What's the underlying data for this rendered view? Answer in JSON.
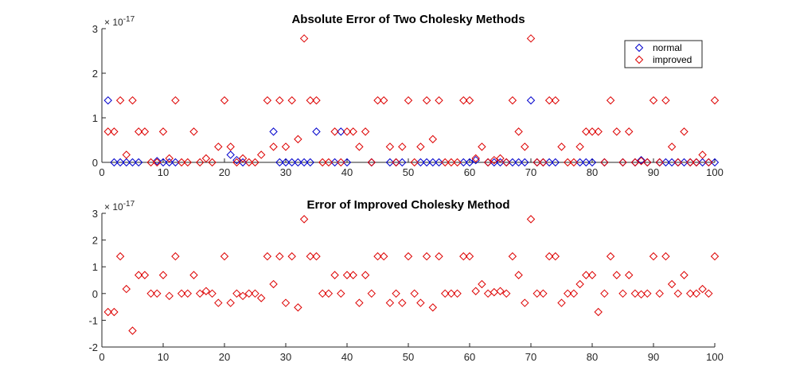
{
  "colors": {
    "normal": "#0000cc",
    "improved": "#dd0000",
    "axis": "#262626"
  },
  "chart_data": [
    {
      "type": "scatter",
      "title": "Absolute Error of Two Cholesky Methods",
      "xlabel": "",
      "ylabel": "",
      "xlim": [
        0,
        100
      ],
      "ylim": [
        0,
        3
      ],
      "xticks": [
        0,
        10,
        20,
        30,
        40,
        50,
        60,
        70,
        80,
        90,
        100
      ],
      "yticks": [
        0,
        1,
        2,
        3
      ],
      "y_exponent": "× 10",
      "y_exponent_power": "-17",
      "marker": "diamond",
      "legend": {
        "position": "top-right"
      },
      "series": [
        {
          "name": "normal",
          "color": "#0000cc",
          "x": [
            1,
            2,
            3,
            4,
            5,
            6,
            9,
            10,
            11,
            12,
            21,
            22,
            23,
            28,
            29,
            30,
            31,
            32,
            33,
            34,
            35,
            38,
            39,
            40,
            44,
            47,
            48,
            49,
            52,
            53,
            54,
            55,
            59,
            60,
            61,
            63,
            64,
            65,
            66,
            67,
            68,
            69,
            70,
            71,
            72,
            73,
            74,
            78,
            79,
            80,
            82,
            85,
            87,
            88,
            89,
            91,
            92,
            93,
            94,
            95,
            96,
            97,
            98,
            99,
            100
          ],
          "y": [
            1.39,
            0,
            0,
            0,
            0,
            0,
            0.03,
            0,
            0,
            0,
            0.17,
            0.05,
            0,
            0.69,
            0,
            0,
            0,
            0,
            0,
            0,
            0.69,
            0,
            0.69,
            0,
            0,
            0,
            0,
            0,
            0,
            0,
            0,
            0,
            0,
            0,
            0.05,
            0,
            0,
            0,
            0,
            0,
            0,
            0,
            1.39,
            0,
            0,
            0,
            0,
            0,
            0,
            0,
            0,
            0,
            0,
            0.05,
            0,
            0,
            0,
            0,
            0,
            0,
            0,
            0,
            0,
            0,
            0
          ]
        },
        {
          "name": "improved",
          "color": "#dd0000",
          "x": [
            1,
            2,
            3,
            4,
            5,
            6,
            7,
            8,
            9,
            10,
            11,
            12,
            13,
            14,
            15,
            16,
            17,
            18,
            19,
            20,
            21,
            22,
            23,
            24,
            25,
            26,
            27,
            28,
            29,
            30,
            31,
            32,
            33,
            34,
            35,
            36,
            37,
            38,
            39,
            40,
            41,
            42,
            43,
            44,
            45,
            46,
            47,
            48,
            49,
            50,
            51,
            52,
            53,
            54,
            55,
            56,
            57,
            58,
            59,
            60,
            61,
            62,
            63,
            64,
            65,
            66,
            67,
            68,
            69,
            70,
            71,
            72,
            73,
            74,
            75,
            76,
            77,
            78,
            79,
            80,
            81,
            82,
            83,
            84,
            85,
            86,
            87,
            88,
            89,
            90,
            91,
            92,
            93,
            94,
            95,
            96,
            97,
            98,
            99,
            100
          ],
          "y": [
            0.69,
            0.69,
            1.39,
            0.17,
            1.39,
            0.69,
            0.69,
            0,
            0,
            0.69,
            0.09,
            1.39,
            0,
            0,
            0.69,
            0,
            0.09,
            0,
            0.35,
            1.39,
            0.35,
            0,
            0.09,
            0,
            0,
            0.17,
            1.39,
            0.35,
            1.39,
            0.35,
            1.39,
            0.52,
            2.78,
            1.39,
            1.39,
            0,
            0,
            0.69,
            0,
            0.69,
            0.69,
            0.35,
            0.69,
            0,
            1.39,
            1.39,
            0.35,
            0,
            0.35,
            1.39,
            0,
            0.35,
            1.39,
            0.52,
            1.39,
            0,
            0,
            0,
            1.39,
            1.39,
            0.09,
            0.35,
            0,
            0.05,
            0.09,
            0,
            1.39,
            0.69,
            0.35,
            2.78,
            0,
            0,
            1.39,
            1.39,
            0.35,
            0,
            0,
            0.35,
            0.69,
            0.69,
            0.69,
            0,
            1.39,
            0.69,
            0,
            0.69,
            0,
            0.03,
            0,
            1.39,
            0,
            1.39,
            0.35,
            0,
            0.69,
            0,
            0,
            0.17,
            0,
            1.39
          ]
        }
      ]
    },
    {
      "type": "scatter",
      "title": "Error of Improved Cholesky Method",
      "xlabel": "",
      "ylabel": "",
      "xlim": [
        0,
        100
      ],
      "ylim": [
        -2,
        3
      ],
      "xticks": [
        0,
        10,
        20,
        30,
        40,
        50,
        60,
        70,
        80,
        90,
        100
      ],
      "yticks": [
        -2,
        -1,
        0,
        1,
        2,
        3
      ],
      "y_exponent": "× 10",
      "y_exponent_power": "-17",
      "marker": "diamond",
      "series": [
        {
          "color": "#dd0000",
          "x": [
            1,
            2,
            3,
            4,
            5,
            6,
            7,
            8,
            9,
            10,
            11,
            12,
            13,
            14,
            15,
            16,
            17,
            18,
            19,
            20,
            21,
            22,
            23,
            24,
            25,
            26,
            27,
            28,
            29,
            30,
            31,
            32,
            33,
            34,
            35,
            36,
            37,
            38,
            39,
            40,
            41,
            42,
            43,
            44,
            45,
            46,
            47,
            48,
            49,
            50,
            51,
            52,
            53,
            54,
            55,
            56,
            57,
            58,
            59,
            60,
            61,
            62,
            63,
            64,
            65,
            66,
            67,
            68,
            69,
            70,
            71,
            72,
            73,
            74,
            75,
            76,
            77,
            78,
            79,
            80,
            81,
            82,
            83,
            84,
            85,
            86,
            87,
            88,
            89,
            90,
            91,
            92,
            93,
            94,
            95,
            96,
            97,
            98,
            99,
            100
          ],
          "y": [
            -0.69,
            -0.69,
            1.39,
            0.17,
            -1.39,
            0.69,
            0.69,
            0,
            0,
            0.69,
            -0.09,
            1.39,
            0,
            0,
            0.69,
            0,
            0.09,
            0,
            -0.35,
            1.39,
            -0.35,
            0,
            -0.09,
            0,
            0,
            -0.17,
            1.39,
            0.35,
            1.39,
            -0.35,
            1.39,
            -0.52,
            2.78,
            1.39,
            1.39,
            0,
            0,
            0.69,
            0,
            0.69,
            0.69,
            -0.35,
            0.69,
            0,
            1.39,
            1.39,
            -0.35,
            0,
            -0.35,
            1.39,
            0,
            -0.35,
            1.39,
            -0.52,
            1.39,
            0,
            0,
            0,
            1.39,
            1.39,
            0.09,
            0.35,
            0,
            0.05,
            0.09,
            0,
            1.39,
            0.69,
            -0.35,
            2.78,
            0,
            0,
            1.39,
            1.39,
            -0.35,
            0,
            0,
            0.35,
            0.69,
            0.69,
            -0.69,
            0,
            1.39,
            0.69,
            0,
            0.69,
            0,
            -0.03,
            0,
            1.39,
            0,
            1.39,
            0.35,
            0,
            0.69,
            0,
            0,
            0.17,
            0,
            1.39
          ]
        }
      ]
    }
  ]
}
